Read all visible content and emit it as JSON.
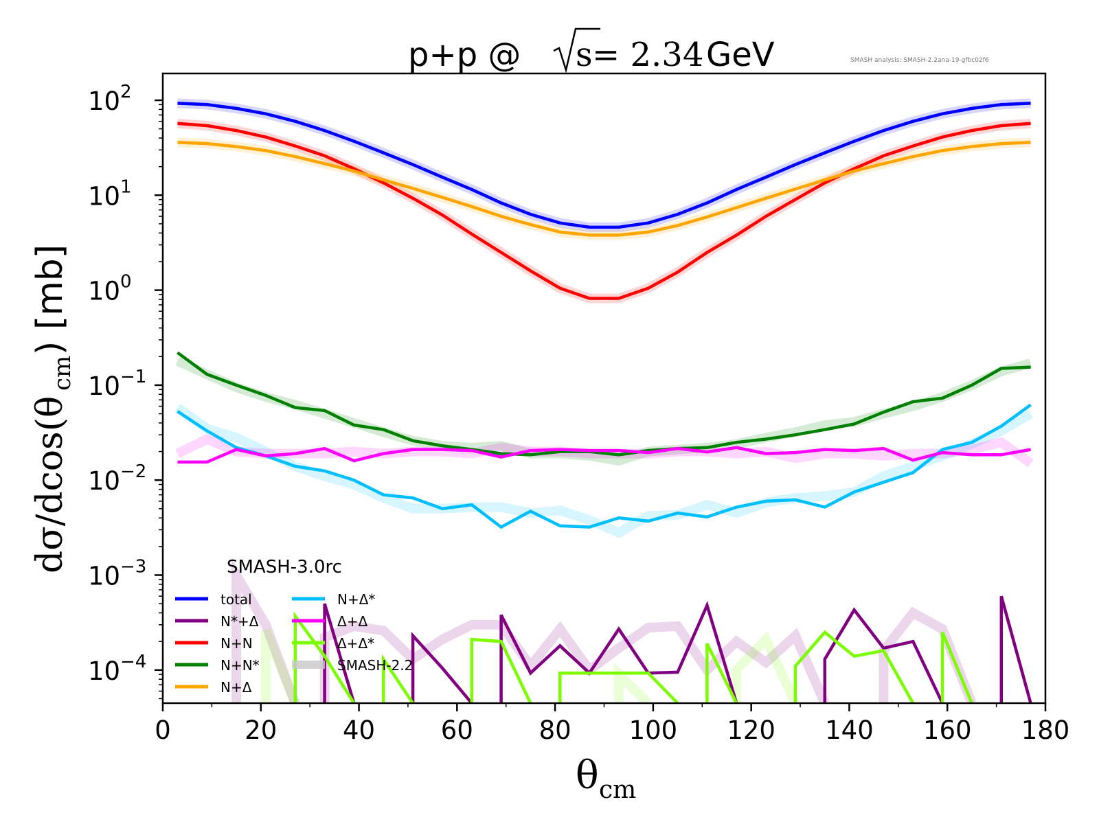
{
  "chart_data": {
    "type": "line",
    "title": "p+p @ √s = 2.34 GeV",
    "title_parts": {
      "prefix": "p+p @ ",
      "sqrt_arg": "s",
      "equals": " = 2.34",
      "unit": " GeV"
    },
    "annotation": "SMASH analysis: SMASH-2.2ana-19-gfbc02f6",
    "xlabel": "θ",
    "xlabel_sub": "cm",
    "ylabel": "dσ/dcos(θ",
    "ylabel_sub": "cm",
    "ylabel_tail": ") [mb]",
    "xlim": [
      0,
      180
    ],
    "ylim": [
      4.5e-05,
      190
    ],
    "yscale": "log",
    "grid": false,
    "xticks": [
      0,
      20,
      40,
      60,
      80,
      100,
      120,
      140,
      160,
      180
    ],
    "xtick_labels": [
      "0",
      "20",
      "40",
      "60",
      "80",
      "100",
      "120",
      "140",
      "160",
      "180"
    ],
    "yticks": [
      2,
      1,
      0,
      -1,
      -2,
      -3,
      -4
    ],
    "ytick_labels": [
      {
        "base": "10",
        "exp": "2"
      },
      {
        "base": "10",
        "exp": "1"
      },
      {
        "base": "10",
        "exp": "0"
      },
      {
        "base": "10",
        "exp": "−1"
      },
      {
        "base": "10",
        "exp": "−2"
      },
      {
        "base": "10",
        "exp": "−3"
      },
      {
        "base": "10",
        "exp": "−4"
      }
    ],
    "legend": {
      "title": "SMASH-3.0rc",
      "placement": "lower-left",
      "columns": 2,
      "entries": [
        {
          "label": "total",
          "color": "#0000ff"
        },
        {
          "label": "N*+Δ",
          "color": "#800080"
        },
        {
          "label": "N+N",
          "color": "#ff0000"
        },
        {
          "label": "N+N*",
          "color": "#008000"
        },
        {
          "label": "N+Δ",
          "color": "#ffa500"
        },
        {
          "label": "N+Δ*",
          "color": "#00bfff"
        },
        {
          "label": "Δ+Δ",
          "color": "#ff00ff"
        },
        {
          "label": "Δ+Δ*",
          "color": "#7cfc00"
        },
        {
          "label": "SMASH-2.2",
          "color": "#c8c8c8"
        }
      ]
    },
    "x": [
      3,
      9,
      15,
      21,
      27,
      33,
      39,
      45,
      51,
      57,
      63,
      69,
      75,
      81,
      87,
      93,
      99,
      105,
      111,
      117,
      123,
      129,
      135,
      141,
      147,
      153,
      159,
      165,
      171,
      177
    ],
    "series": [
      {
        "name": "total",
        "color": "#0000ff",
        "values": [
          93,
          90,
          82,
          72,
          60,
          48,
          37,
          28,
          21,
          15.5,
          11.5,
          8.3,
          6.3,
          5.1,
          4.6,
          4.6,
          5.1,
          6.3,
          8.3,
          11.5,
          15.5,
          21,
          28,
          37,
          48,
          60,
          72,
          82,
          90,
          93
        ],
        "ref_values": [
          93,
          90,
          82,
          72,
          60,
          48,
          37,
          28,
          21,
          15.5,
          11.5,
          8.3,
          6.3,
          5.1,
          4.6,
          4.6,
          5.1,
          6.3,
          8.3,
          11.5,
          15.5,
          21,
          28,
          37,
          48,
          60,
          72,
          82,
          90,
          93
        ]
      },
      {
        "name": "N+N",
        "color": "#ff0000",
        "values": [
          57,
          54,
          48,
          41,
          33,
          26,
          19,
          13.5,
          9.3,
          6.2,
          3.9,
          2.5,
          1.6,
          1.05,
          0.82,
          0.82,
          1.05,
          1.55,
          2.5,
          3.8,
          6.0,
          9.0,
          13.5,
          19,
          26,
          33,
          41,
          48,
          54,
          57
        ],
        "ref_values": [
          57,
          54,
          48,
          41,
          33,
          26,
          19,
          13.5,
          9.3,
          6.2,
          3.9,
          2.5,
          1.6,
          1.05,
          0.82,
          0.82,
          1.05,
          1.55,
          2.5,
          3.8,
          6.0,
          9.0,
          13.5,
          19,
          26,
          33,
          41,
          48,
          54,
          57
        ]
      },
      {
        "name": "N+Δ",
        "color": "#ffa500",
        "values": [
          36,
          35,
          32.5,
          29.5,
          25.5,
          21.5,
          18,
          14.5,
          11.8,
          9.5,
          7.6,
          6.0,
          4.9,
          4.1,
          3.8,
          3.8,
          4.1,
          4.8,
          5.9,
          7.4,
          9.3,
          11.6,
          14.5,
          18,
          21.5,
          25.5,
          29.5,
          32.5,
          35,
          36
        ],
        "ref_values": [
          36,
          35,
          32.5,
          29.5,
          25.5,
          21.5,
          18,
          14.5,
          11.8,
          9.5,
          7.6,
          6.0,
          4.9,
          4.1,
          3.8,
          3.8,
          4.1,
          4.8,
          5.9,
          7.4,
          9.3,
          11.6,
          14.5,
          18,
          21.5,
          25.5,
          29.5,
          32.5,
          35,
          36
        ]
      },
      {
        "name": "N+N*",
        "color": "#008000",
        "values": [
          0.22,
          0.13,
          0.1,
          0.078,
          0.058,
          0.054,
          0.038,
          0.034,
          0.026,
          0.023,
          0.021,
          0.019,
          0.0185,
          0.02,
          0.02,
          0.0185,
          0.0205,
          0.0215,
          0.022,
          0.025,
          0.027,
          0.03,
          0.034,
          0.039,
          0.052,
          0.067,
          0.073,
          0.1,
          0.15,
          0.155
        ],
        "ref_values": [
          0.18,
          0.13,
          0.095,
          0.075,
          0.062,
          0.05,
          0.04,
          0.032,
          0.026,
          0.023,
          0.022,
          0.023,
          0.019,
          0.019,
          0.018,
          0.016,
          0.02,
          0.021,
          0.022,
          0.024,
          0.028,
          0.032,
          0.038,
          0.041,
          0.05,
          0.06,
          0.075,
          0.1,
          0.14,
          0.17
        ]
      },
      {
        "name": "N+Δ*",
        "color": "#00bfff",
        "values": [
          0.053,
          0.033,
          0.022,
          0.018,
          0.014,
          0.0125,
          0.01,
          0.007,
          0.0065,
          0.005,
          0.0055,
          0.0032,
          0.0047,
          0.0033,
          0.0032,
          0.004,
          0.0037,
          0.0045,
          0.0041,
          0.0052,
          0.006,
          0.0062,
          0.0052,
          0.0075,
          0.0095,
          0.012,
          0.021,
          0.025,
          0.037,
          0.062
        ],
        "ref_values": [
          0.058,
          0.035,
          0.028,
          0.02,
          0.014,
          0.011,
          0.009,
          0.0065,
          0.005,
          0.005,
          0.0052,
          0.0052,
          0.0045,
          0.0048,
          0.0038,
          0.0028,
          0.0042,
          0.0043,
          0.0055,
          0.0045,
          0.0058,
          0.0065,
          0.0068,
          0.0075,
          0.011,
          0.014,
          0.018,
          0.024,
          0.033,
          0.05
        ]
      },
      {
        "name": "Δ+Δ",
        "color": "#ff00ff",
        "values": [
          0.0155,
          0.0155,
          0.021,
          0.018,
          0.019,
          0.0215,
          0.016,
          0.019,
          0.021,
          0.021,
          0.0205,
          0.0175,
          0.0205,
          0.021,
          0.0205,
          0.0205,
          0.0195,
          0.0215,
          0.0198,
          0.022,
          0.019,
          0.0195,
          0.021,
          0.0205,
          0.0215,
          0.0162,
          0.0195,
          0.0185,
          0.0185,
          0.021
        ],
        "ref_values": [
          0.019,
          0.027,
          0.02,
          0.019,
          0.019,
          0.019,
          0.02,
          0.019,
          0.02,
          0.02,
          0.019,
          0.022,
          0.02,
          0.02,
          0.019,
          0.019,
          0.019,
          0.02,
          0.02,
          0.019,
          0.02,
          0.017,
          0.019,
          0.019,
          0.018,
          0.019,
          0.019,
          0.021,
          0.025,
          0.015
        ]
      },
      {
        "name": "N*+Δ",
        "color": "#800080",
        "values": [
          null,
          null,
          null,
          null,
          null,
          0.0005,
          null,
          null,
          0.00023,
          0.000105,
          null,
          0.00038,
          9.3e-05,
          0.00018,
          9.3e-05,
          0.00027,
          9.3e-05,
          9.5e-05,
          0.00048,
          null,
          null,
          null,
          0.00013,
          0.00043,
          0.00017,
          0.0002,
          null,
          null,
          0.0006,
          null
        ],
        "ref_values": [
          null,
          null,
          0.001,
          0.0003,
          null,
          0.00022,
          0.00029,
          0.00026,
          0.00013,
          0.00021,
          0.0003,
          0.0003,
          0.00011,
          0.00027,
          0.0001,
          0.00017,
          0.00028,
          0.00029,
          0.0001,
          0.0002,
          0.00012,
          0.00023,
          null,
          null,
          0.00016,
          0.0004,
          0.00027,
          null,
          null,
          null
        ]
      },
      {
        "name": "Δ+Δ*",
        "color": "#7cfc00",
        "values": [
          null,
          null,
          null,
          null,
          0.00037,
          0.00014,
          null,
          0.00013,
          null,
          null,
          0.00021,
          0.0002,
          null,
          9.3e-05,
          9.3e-05,
          9.3e-05,
          9.3e-05,
          null,
          0.00019,
          null,
          null,
          0.00011,
          0.00025,
          0.00014,
          0.00016,
          null,
          0.00025,
          null,
          null,
          null
        ],
        "ref_values": [
          null,
          null,
          null,
          0.00026,
          null,
          null,
          null,
          null,
          null,
          null,
          null,
          null,
          null,
          null,
          null,
          9e-05,
          null,
          null,
          null,
          0.0001,
          0.00021,
          null,
          null,
          null,
          null,
          null,
          null,
          null,
          null,
          null
        ]
      }
    ]
  }
}
